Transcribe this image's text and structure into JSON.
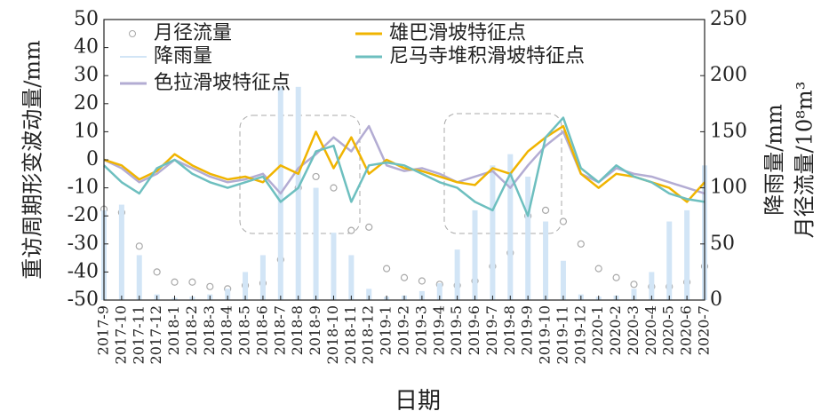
{
  "chart_data": {
    "type": "combo",
    "x_label": "日期",
    "y_label": "重访周期形变波动量/mm",
    "y2_labels": [
      "降雨量/mm",
      "月径流量/10⁸m³"
    ],
    "categories": [
      "2017-9",
      "2017-10",
      "2017-11",
      "2017-12",
      "2018-1",
      "2018-2",
      "2018-3",
      "2018-4",
      "2018-5",
      "2018-6",
      "2018-7",
      "2018-8",
      "2018-9",
      "2018-10",
      "2018-11",
      "2018-12",
      "2019-1",
      "2019-2",
      "2019-3",
      "2019-4",
      "2019-5",
      "2019-6",
      "2019-7",
      "2019-8",
      "2019-9",
      "2019-10",
      "2019-11",
      "2019-12",
      "2020-1",
      "2020-2",
      "2020-3",
      "2020-4",
      "2020-5",
      "2020-6",
      "2020-7"
    ],
    "ylim": [
      -50,
      50
    ],
    "yticks": [
      -50,
      -40,
      -30,
      -20,
      -10,
      0,
      10,
      20,
      30,
      40,
      50
    ],
    "y2lim": [
      0,
      250
    ],
    "y2ticks": [
      0,
      50,
      100,
      150,
      200,
      250
    ],
    "legend": "upper left",
    "series": [
      {
        "name": "月径流量",
        "type": "scatter",
        "axis": "y2",
        "color": "#a9a9a9",
        "values": [
          81,
          78,
          48,
          25,
          16,
          16,
          12,
          10,
          13,
          15,
          36,
          100,
          110,
          100,
          62,
          65,
          28,
          20,
          17,
          14,
          13,
          17,
          30,
          42,
          75,
          80,
          70,
          50,
          28,
          20,
          14,
          12,
          12,
          16,
          30
        ]
      },
      {
        "name": "降雨量",
        "type": "bar",
        "axis": "y2",
        "color": "#d2e5f6",
        "values": [
          80,
          85,
          40,
          5,
          2,
          3,
          5,
          10,
          25,
          40,
          190,
          190,
          100,
          60,
          40,
          10,
          3,
          4,
          8,
          15,
          45,
          80,
          120,
          130,
          110,
          70,
          35,
          5,
          3,
          4,
          10,
          25,
          70,
          80,
          120
        ]
      },
      {
        "name": "色拉滑坡特征点",
        "type": "line",
        "color": "#b3acd3",
        "values": [
          0,
          -3,
          -8,
          -5,
          0,
          -3,
          -6,
          -8,
          -7,
          -5,
          -12,
          -3,
          2,
          8,
          3,
          12,
          -2,
          -4,
          -3,
          -5,
          -8,
          -6,
          -4,
          -10,
          -2,
          5,
          10,
          -5,
          -8,
          -3,
          -5,
          -6,
          -8,
          -10,
          -12
        ]
      },
      {
        "name": "雄巴滑坡特征点",
        "type": "line",
        "color": "#f0b400",
        "values": [
          0,
          -2,
          -7,
          -4,
          2,
          -2,
          -5,
          -7,
          -6,
          -8,
          -2,
          -5,
          10,
          -3,
          8,
          -5,
          0,
          -3,
          -4,
          -6,
          -8,
          -9,
          -3,
          -5,
          3,
          8,
          12,
          -5,
          -10,
          -5,
          -6,
          -8,
          -10,
          -15,
          -8
        ]
      },
      {
        "name": "尼马寺堆积滑坡特征点",
        "type": "line",
        "color": "#6dbfbf",
        "values": [
          -2,
          -8,
          -12,
          -3,
          0,
          -5,
          -8,
          -10,
          -8,
          -6,
          -15,
          -10,
          3,
          5,
          -15,
          -2,
          -1,
          -2,
          -5,
          -8,
          -10,
          -15,
          -18,
          -5,
          -20,
          8,
          15,
          -3,
          -8,
          -2,
          -6,
          -8,
          -12,
          -14,
          -15
        ]
      }
    ]
  }
}
